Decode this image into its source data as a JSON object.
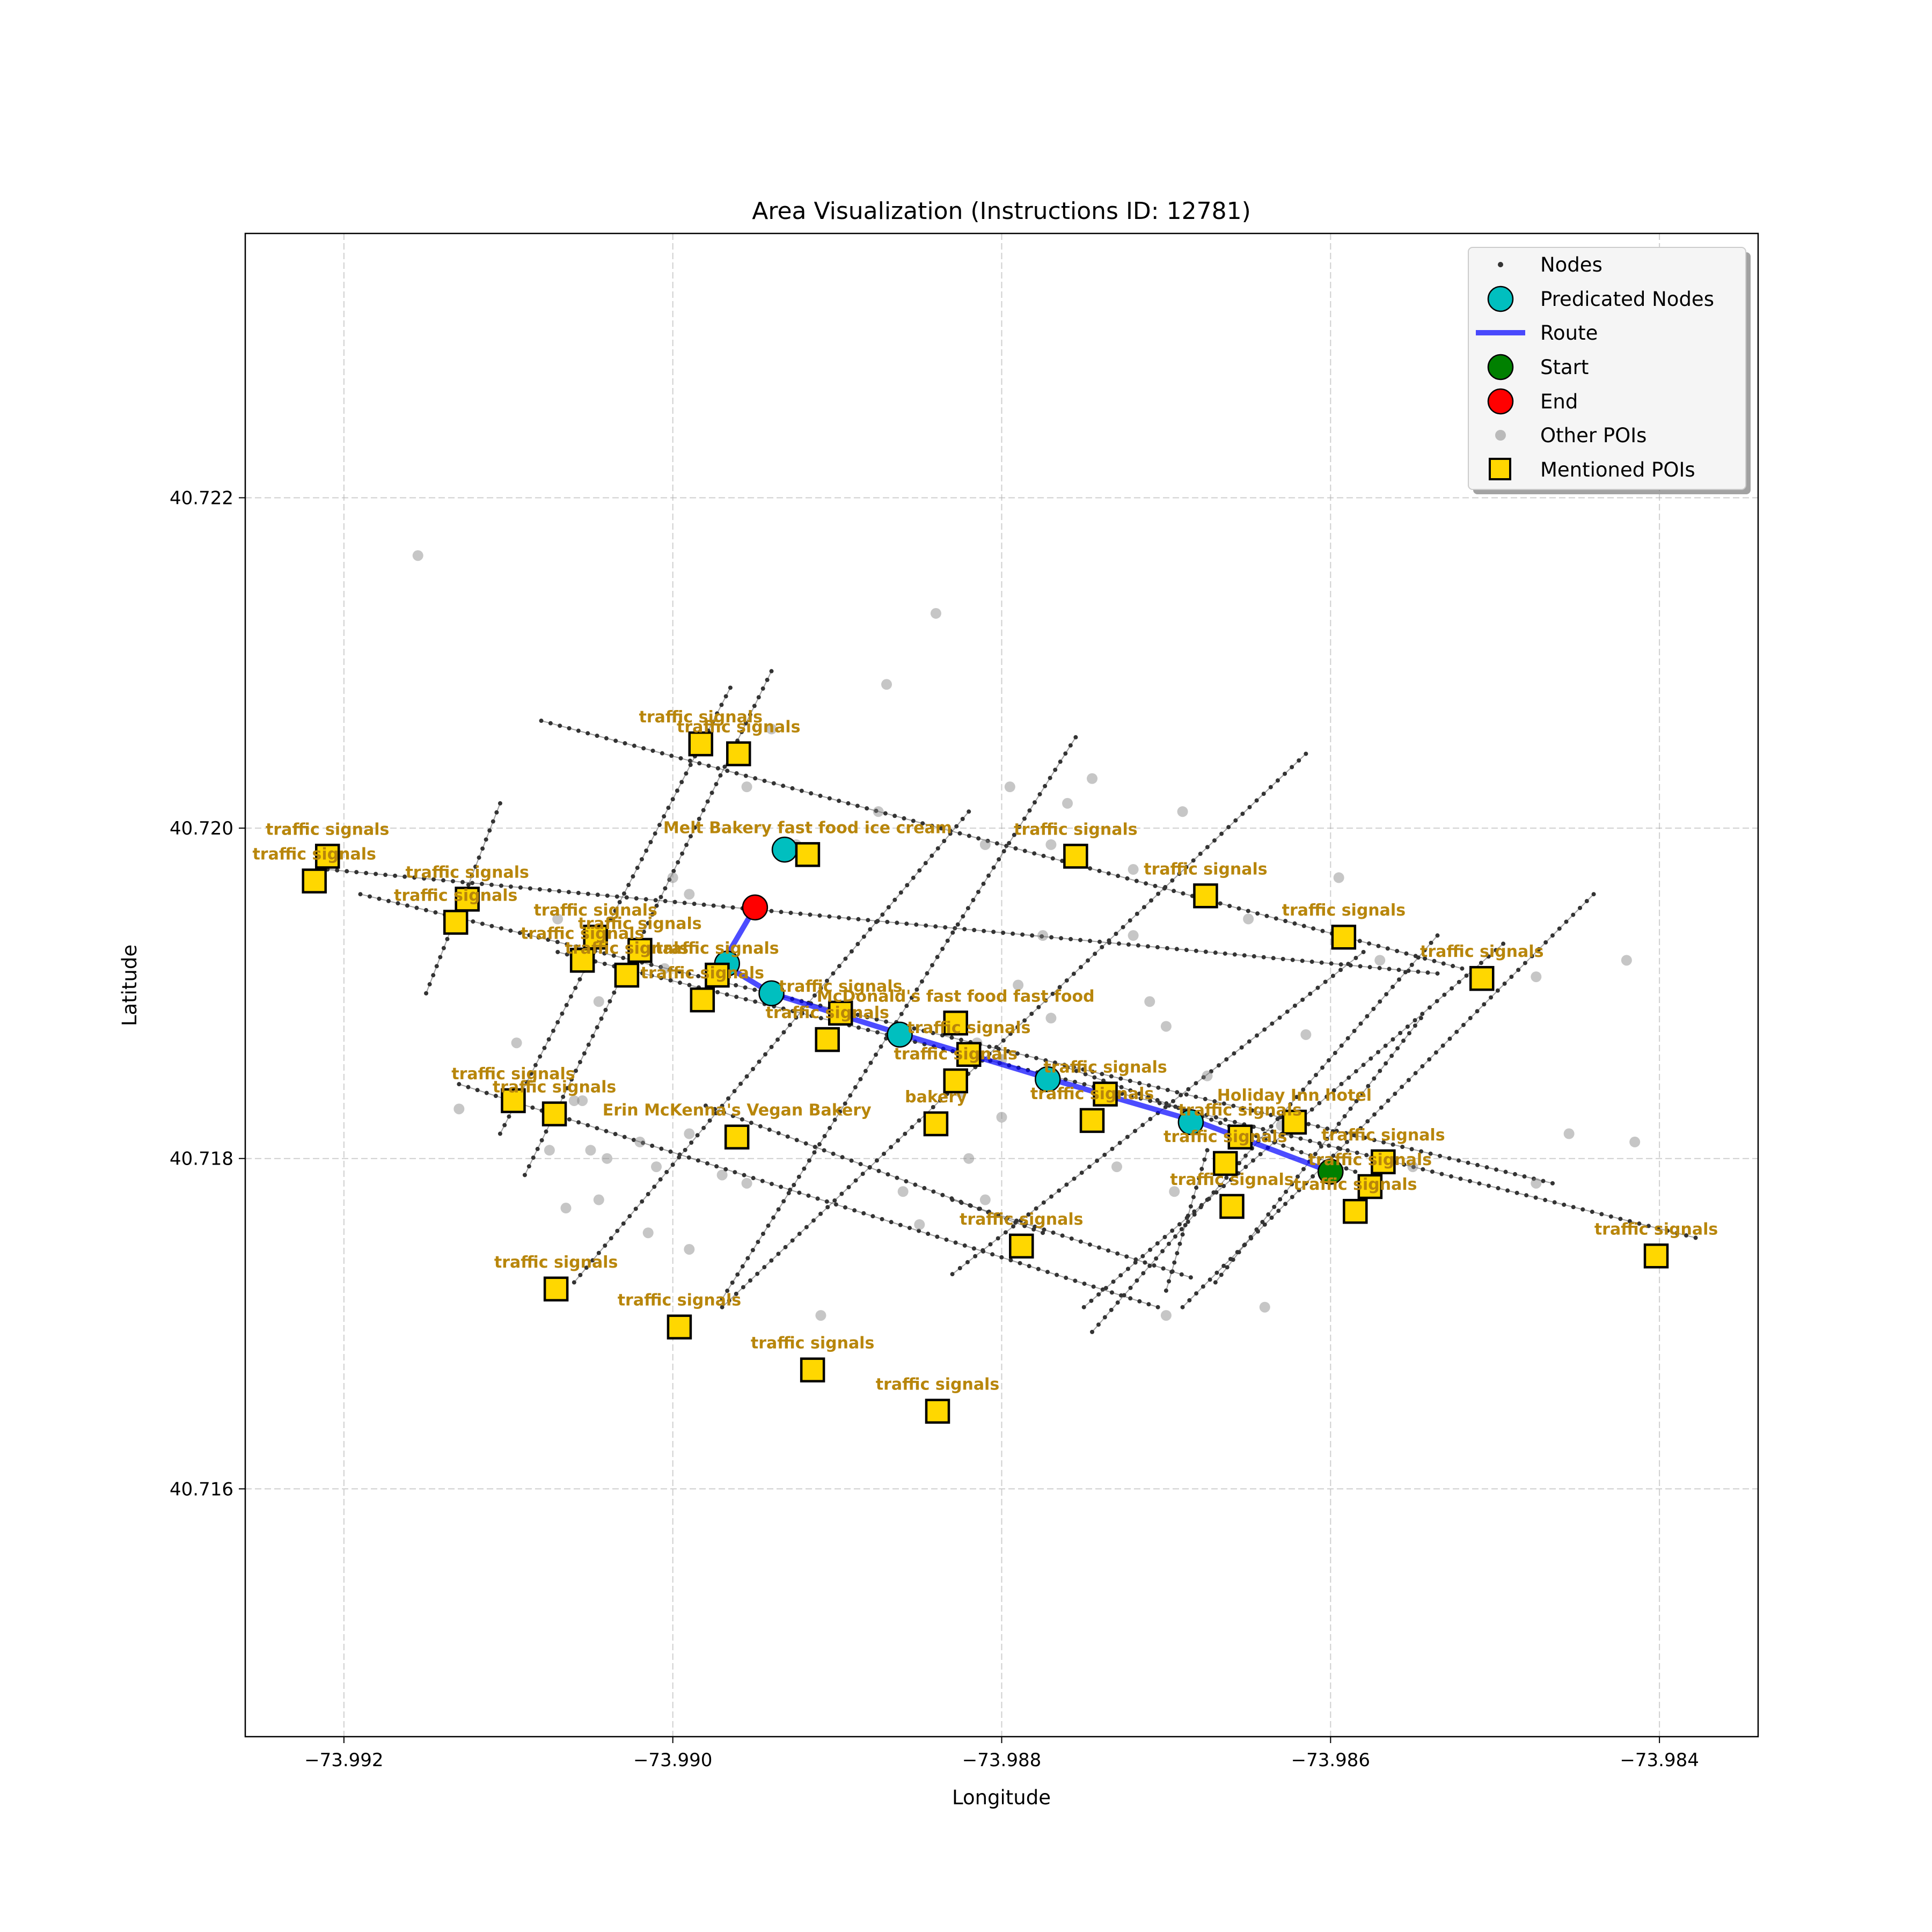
{
  "chart_data": {
    "type": "scatter",
    "title": "Area Visualization (Instructions ID: 12781)",
    "xlabel": "Longitude",
    "ylabel": "Latitude",
    "xlim": [
      -73.9926,
      -73.9834
    ],
    "ylim": [
      40.7145,
      40.7236
    ],
    "xticks": [
      -73.992,
      -73.99,
      -73.988,
      -73.986,
      -73.984
    ],
    "xtick_labels": [
      "−73.992",
      "−73.990",
      "−73.988",
      "−73.986",
      "−73.984"
    ],
    "yticks": [
      40.716,
      40.718,
      40.72,
      40.722
    ],
    "ytick_labels": [
      "40.716",
      "40.718",
      "40.720",
      "40.722"
    ],
    "grid": true,
    "legend_position": "top-right",
    "legend": [
      "Nodes",
      "Predicated Nodes",
      "Route",
      "Start",
      "End",
      "Other POIs",
      "Mentioned POIs"
    ],
    "colors": {
      "nodes": "#333333",
      "predicated": "#00bfbf",
      "route": "#0000ff",
      "start": "#008000",
      "end": "#ff0000",
      "other_poi": "#808080",
      "mentioned_poi": "#ffd700",
      "poi_label": "#b8860b"
    },
    "streets": [
      [
        [
          -73.9921,
          40.71975
        ],
        [
          -73.98535,
          40.71912
        ]
      ],
      [
        [
          -73.9919,
          40.7196
        ],
        [
          -73.98465,
          40.71785
        ]
      ],
      [
        [
          -73.9907,
          40.71925
        ],
        [
          -73.98378,
          40.71752
        ]
      ],
      [
        [
          -73.9913,
          40.71845
        ],
        [
          -73.98705,
          40.7171
        ]
      ],
      [
        [
          -73.9898,
          40.71832
        ],
        [
          -73.98775,
          40.71755
        ]
      ],
      [
        [
          -73.9876,
          40.71855
        ],
        [
          -73.98585,
          40.71792
        ]
      ],
      [
        [
          -73.9908,
          40.72065
        ],
        [
          -73.9852,
          40.71915
        ]
      ],
      [
        [
          -73.9883,
          40.71775
        ],
        [
          -73.98685,
          40.71728
        ]
      ],
      [
        [
          -73.9915,
          40.719
        ],
        [
          -73.99105,
          40.72015
        ]
      ],
      [
        [
          -73.99105,
          40.71815
        ],
        [
          -73.98965,
          40.72085
        ]
      ],
      [
        [
          -73.9909,
          40.7179
        ],
        [
          -73.9894,
          40.72095
        ]
      ],
      [
        [
          -73.9906,
          40.71725
        ],
        [
          -73.9882,
          40.7201
        ]
      ],
      [
        [
          -73.9897,
          40.71715
        ],
        [
          -73.98755,
          40.72055
        ]
      ],
      [
        [
          -73.9897,
          40.7171
        ],
        [
          -73.98615,
          40.72045
        ]
      ],
      [
        [
          -73.9883,
          40.7173
        ],
        [
          -73.9858,
          40.71925
        ]
      ],
      [
        [
          -73.9867,
          40.71725
        ],
        [
          -73.98545,
          40.71885
        ]
      ],
      [
        [
          -73.9875,
          40.7171
        ],
        [
          -73.98495,
          40.7193
        ]
      ],
      [
        [
          -73.98745,
          40.71695
        ],
        [
          -73.98535,
          40.71935
        ]
      ],
      [
        [
          -73.9869,
          40.7171
        ],
        [
          -73.9844,
          40.7196
        ]
      ],
      [
        [
          -73.987,
          40.7172
        ],
        [
          -73.98675,
          40.71805
        ]
      ]
    ],
    "other_pois": [
      [
        -73.99155,
        40.72165
      ],
      [
        -73.9887,
        40.72087
      ],
      [
        -73.9884,
        40.7213
      ],
      [
        -73.9894,
        40.7206
      ],
      [
        -73.98875,
        40.7201
      ],
      [
        -73.98795,
        40.72025
      ],
      [
        -73.9876,
        40.72015
      ],
      [
        -73.98745,
        40.7203
      ],
      [
        -73.9869,
        40.7201
      ],
      [
        -73.9881,
        40.7199
      ],
      [
        -73.9877,
        40.7199
      ],
      [
        -73.9872,
        40.71975
      ],
      [
        -73.98775,
        40.71935
      ],
      [
        -73.9872,
        40.71935
      ],
      [
        -73.9865,
        40.71945
      ],
      [
        -73.98595,
        40.7197
      ],
      [
        -73.9857,
        40.7192
      ],
      [
        -73.9842,
        40.7192
      ],
      [
        -73.98675,
        40.7185
      ],
      [
        -73.9866,
        40.71815
      ],
      [
        -73.9863,
        40.7182
      ],
      [
        -73.9907,
        40.71945
      ],
      [
        -73.99,
        40.7197
      ],
      [
        -73.98925,
        40.7199
      ],
      [
        -73.98955,
        40.72025
      ],
      [
        -73.9899,
        40.7196
      ],
      [
        -73.99005,
        40.71915
      ],
      [
        -73.99045,
        40.71895
      ],
      [
        -73.99095,
        40.7187
      ],
      [
        -73.9906,
        40.71835
      ],
      [
        -73.9913,
        40.7183
      ],
      [
        -73.99075,
        40.71805
      ],
      [
        -73.9905,
        40.71805
      ],
      [
        -73.9899,
        40.71815
      ],
      [
        -73.9897,
        40.7179
      ],
      [
        -73.98955,
        40.71785
      ],
      [
        -73.9901,
        40.71795
      ],
      [
        -73.9902,
        40.7181
      ],
      [
        -73.9904,
        40.718
      ],
      [
        -73.99045,
        40.71775
      ],
      [
        -73.99065,
        40.7177
      ],
      [
        -73.99055,
        40.71835
      ],
      [
        -73.98825,
        40.7184
      ],
      [
        -73.9882,
        40.718
      ],
      [
        -73.988,
        40.7186
      ],
      [
        -73.9879,
        40.71905
      ],
      [
        -73.988,
        40.71825
      ],
      [
        -73.98815,
        40.7187
      ],
      [
        -73.9877,
        40.71885
      ],
      [
        -73.9871,
        40.71895
      ],
      [
        -73.987,
        40.7188
      ],
      [
        -73.98615,
        40.71875
      ],
      [
        -73.9855,
        40.71795
      ],
      [
        -73.98475,
        40.71785
      ],
      [
        -73.98475,
        40.7191
      ],
      [
        -73.98415,
        40.7181
      ],
      [
        -73.98455,
        40.71815
      ],
      [
        -73.9899,
        40.71745
      ],
      [
        -73.99015,
        40.71755
      ],
      [
        -73.9886,
        40.7178
      ],
      [
        -73.9873,
        40.71795
      ],
      [
        -73.9885,
        40.7176
      ],
      [
        -73.987,
        40.71705
      ],
      [
        -73.9891,
        40.71705
      ],
      [
        -73.98695,
        40.7178
      ],
      [
        -73.9881,
        40.71775
      ],
      [
        -73.9864,
        40.7171
      ]
    ],
    "route": [
      [
        -73.986,
        40.71792
      ],
      [
        -73.9868,
        40.71822
      ],
      [
        -73.9877,
        40.71848
      ],
      [
        -73.9886,
        40.71875
      ],
      [
        -73.9894,
        40.719
      ],
      [
        -73.9897,
        40.71918
      ],
      [
        -73.9895,
        40.71952
      ]
    ],
    "predicated_nodes": [
      [
        -73.98685,
        40.71822
      ],
      [
        -73.98772,
        40.71848
      ],
      [
        -73.98862,
        40.71875
      ],
      [
        -73.9894,
        40.719
      ],
      [
        -73.98967,
        40.71918
      ],
      [
        -73.98932,
        40.71987
      ]
    ],
    "start": [
      -73.986,
      40.71792
    ],
    "end": [
      -73.9895,
      40.71952
    ],
    "mentioned_pois": [
      {
        "x": -73.99218,
        "y": 40.71968,
        "label": "traffic signals"
      },
      {
        "x": -73.9921,
        "y": 40.71983,
        "label": "traffic signals"
      },
      {
        "x": -73.99125,
        "y": 40.71957,
        "label": "traffic signals"
      },
      {
        "x": -73.99132,
        "y": 40.71943,
        "label": "traffic signals"
      },
      {
        "x": -73.99047,
        "y": 40.71934,
        "label": "traffic signals"
      },
      {
        "x": -73.99055,
        "y": 40.7192,
        "label": "traffic signals"
      },
      {
        "x": -73.9902,
        "y": 40.71926,
        "label": "traffic signals"
      },
      {
        "x": -73.99028,
        "y": 40.71911,
        "label": "traffic signals"
      },
      {
        "x": -73.98973,
        "y": 40.71911,
        "label": "traffic signals"
      },
      {
        "x": -73.98982,
        "y": 40.71896,
        "label": "traffic signals"
      },
      {
        "x": -73.98983,
        "y": 40.72051,
        "label": "traffic signals"
      },
      {
        "x": -73.9896,
        "y": 40.72045,
        "label": "traffic signals"
      },
      {
        "x": -73.98918,
        "y": 40.71984,
        "label": "Melt Bakery fast food ice cream"
      },
      {
        "x": -73.98898,
        "y": 40.71888,
        "label": "traffic signals"
      },
      {
        "x": -73.98906,
        "y": 40.71872,
        "label": "traffic signals"
      },
      {
        "x": -73.98828,
        "y": 40.71882,
        "label": "McDonald's fast food fast food"
      },
      {
        "x": -73.9882,
        "y": 40.71863,
        "label": "traffic signals"
      },
      {
        "x": -73.98828,
        "y": 40.71847,
        "label": "traffic signals"
      },
      {
        "x": -73.98755,
        "y": 40.71983,
        "label": "traffic signals"
      },
      {
        "x": -73.98737,
        "y": 40.71839,
        "label": "traffic signals"
      },
      {
        "x": -73.98745,
        "y": 40.71823,
        "label": "traffic signals"
      },
      {
        "x": -73.98676,
        "y": 40.71959,
        "label": "traffic signals"
      },
      {
        "x": -73.98655,
        "y": 40.71813,
        "label": "traffic signals"
      },
      {
        "x": -73.98664,
        "y": 40.71797,
        "label": "traffic signals"
      },
      {
        "x": -73.98622,
        "y": 40.71822,
        "label": "Holiday Inn    hotel"
      },
      {
        "x": -73.98592,
        "y": 40.71934,
        "label": "traffic signals"
      },
      {
        "x": -73.98568,
        "y": 40.71798,
        "label": "traffic signals"
      },
      {
        "x": -73.98576,
        "y": 40.71783,
        "label": "traffic signals"
      },
      {
        "x": -73.98585,
        "y": 40.71768,
        "label": "traffic signals"
      },
      {
        "x": -73.98508,
        "y": 40.71909,
        "label": "traffic signals"
      },
      {
        "x": -73.99097,
        "y": 40.71835,
        "label": "traffic signals"
      },
      {
        "x": -73.99072,
        "y": 40.71827,
        "label": "traffic signals"
      },
      {
        "x": -73.98961,
        "y": 40.71813,
        "label": "Erin McKenna's Vegan Bakery"
      },
      {
        "x": -73.9884,
        "y": 40.71821,
        "label": "bakery"
      },
      {
        "x": -73.9866,
        "y": 40.71771,
        "label": "traffic signals"
      },
      {
        "x": -73.98788,
        "y": 40.71747,
        "label": "traffic signals"
      },
      {
        "x": -73.99071,
        "y": 40.71721,
        "label": "traffic signals"
      },
      {
        "x": -73.98996,
        "y": 40.71698,
        "label": "traffic signals"
      },
      {
        "x": -73.98915,
        "y": 40.71672,
        "label": "traffic signals"
      },
      {
        "x": -73.98839,
        "y": 40.71647,
        "label": "traffic signals"
      },
      {
        "x": -73.98402,
        "y": 40.71741,
        "label": "traffic signals"
      }
    ]
  }
}
